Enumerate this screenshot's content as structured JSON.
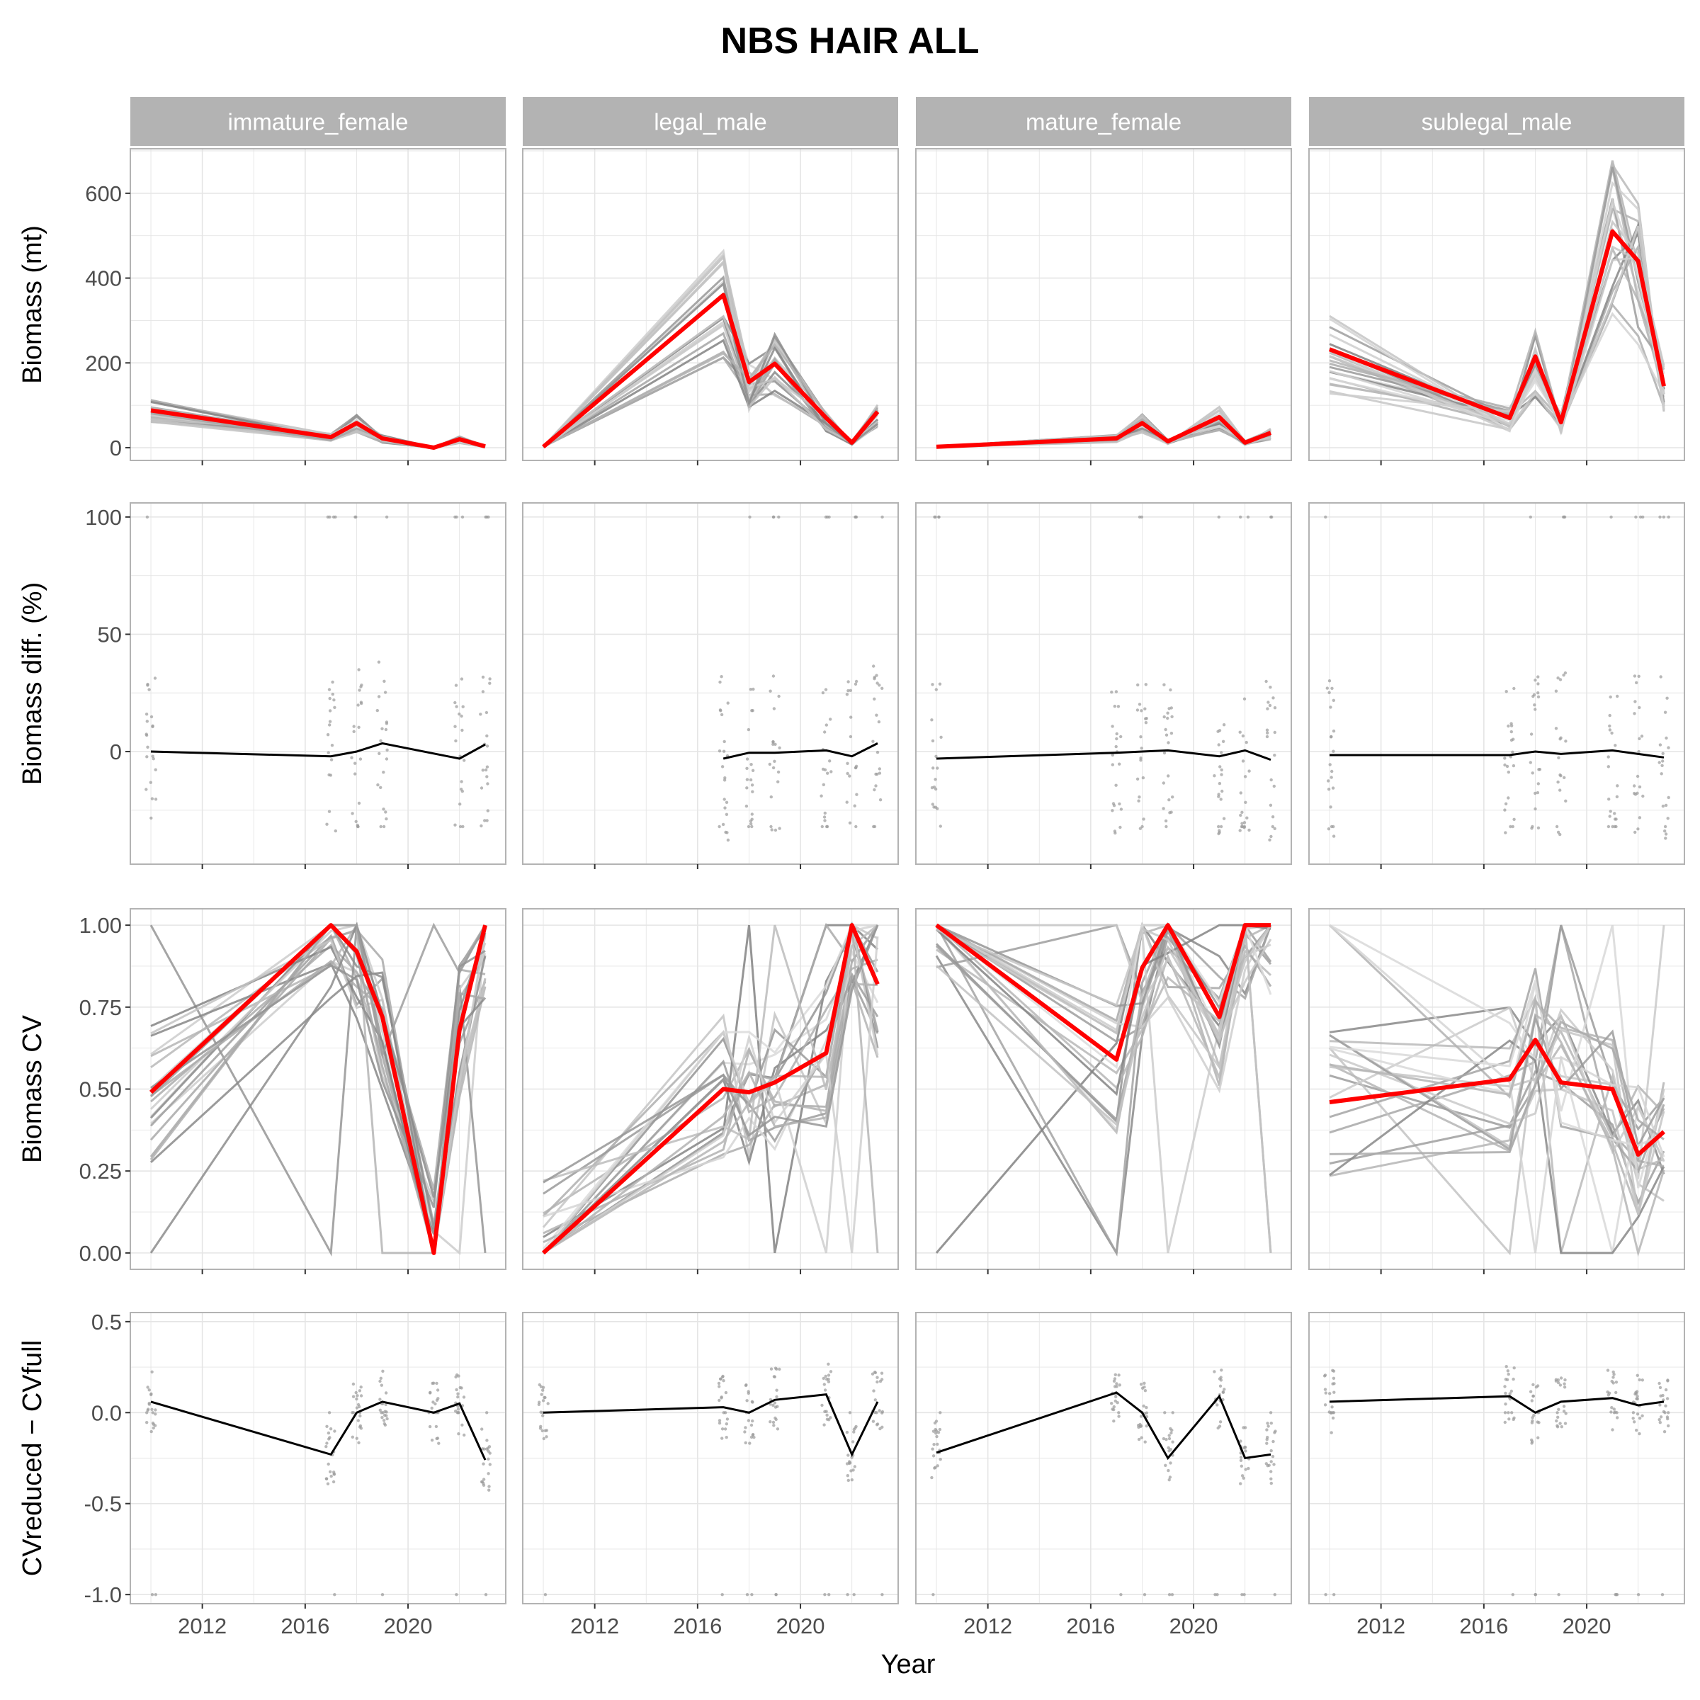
{
  "title": "NBS HAIR ALL",
  "xlabel": "Year",
  "panel_names": [
    "immature_female",
    "legal_male",
    "mature_female",
    "sublegal_male"
  ],
  "row_labels": {
    "biomass": "Biomass (mt)",
    "diff": "Biomass diff. (%)",
    "cv": "Biomass CV",
    "dcv": "CVreduced − CVfull"
  },
  "colors": {
    "highlight": "#ff0000",
    "replicate": "#808080",
    "mean_line": "#000000",
    "points": "#9a9a9a",
    "strip": "#b3b3b3",
    "panel_border": "#b3b3b3",
    "grid": "#e5e5e5"
  },
  "chart_data": {
    "type": "line",
    "layout": "facet grid, 4 rows x 4 columns, shared x axis",
    "x_ticks": [
      2012,
      2016,
      2020
    ],
    "rows": [
      {
        "key": "biomass",
        "ylabel": "Biomass (mt)",
        "ylim": [
          -30,
          705
        ],
        "y_ticks": [
          0,
          200,
          400,
          600
        ],
        "y_tick_labels": [
          "0",
          "200",
          "400",
          "600"
        ],
        "panels": [
          {
            "name": "immature_female",
            "x": [
              2010,
              2017,
              2018,
              2019,
              2021,
              2022,
              2023
            ],
            "values": [
              88,
              25,
              58,
              22,
              0,
              20,
              3
            ]
          },
          {
            "name": "legal_male",
            "x": [
              2010,
              2017,
              2018,
              2019,
              2021,
              2022,
              2023
            ],
            "values": [
              2,
              360,
              155,
              198,
              70,
              12,
              85
            ]
          },
          {
            "name": "mature_female",
            "x": [
              2010,
              2017,
              2018,
              2019,
              2021,
              2022,
              2023
            ],
            "values": [
              2,
              22,
              58,
              15,
              72,
              12,
              35
            ]
          },
          {
            "name": "sublegal_male",
            "x": [
              2010,
              2017,
              2018,
              2019,
              2021,
              2022,
              2023
            ],
            "values": [
              232,
              70,
              215,
              60,
              510,
              440,
              145
            ]
          }
        ]
      },
      {
        "key": "diff",
        "ylabel": "Biomass diff. (%)",
        "ylim": [
          -48,
          106
        ],
        "y_ticks": [
          0,
          50,
          100
        ],
        "y_tick_labels": [
          "0",
          "50",
          "100"
        ],
        "panels": [
          {
            "name": "immature_female",
            "x": [
              2010,
              2017,
              2018,
              2019,
              2022,
              2023
            ],
            "values": [
              0,
              -2,
              0,
              3.5,
              -3,
              3
            ]
          },
          {
            "name": "legal_male",
            "x": [
              2017,
              2018,
              2019,
              2021,
              2022,
              2023
            ],
            "values": [
              -3,
              -0.5,
              -0.5,
              0.5,
              -2,
              3.5
            ]
          },
          {
            "name": "mature_female",
            "x": [
              2010,
              2017,
              2018,
              2019,
              2021,
              2022,
              2023
            ],
            "values": [
              -3,
              -0.5,
              0,
              0.5,
              -2,
              0.5,
              -3.5
            ]
          },
          {
            "name": "sublegal_male",
            "x": [
              2010,
              2017,
              2018,
              2019,
              2021,
              2022,
              2023
            ],
            "values": [
              -1.5,
              -1.5,
              0,
              -1,
              0.5,
              -1,
              -2.5
            ]
          }
        ]
      },
      {
        "key": "cv",
        "ylabel": "Biomass CV",
        "ylim": [
          -0.05,
          1.05
        ],
        "y_ticks": [
          0,
          0.25,
          0.5,
          0.75,
          1
        ],
        "y_tick_labels": [
          "0.00",
          "0.25",
          "0.50",
          "0.75",
          "1.00"
        ],
        "panels": [
          {
            "name": "immature_female",
            "x": [
              2010,
              2017,
              2018,
              2019,
              2021,
              2022,
              2023
            ],
            "values": [
              0.49,
              1.0,
              0.92,
              0.72,
              0.0,
              0.68,
              1.0
            ]
          },
          {
            "name": "legal_male",
            "x": [
              2010,
              2017,
              2018,
              2019,
              2021,
              2022,
              2023
            ],
            "values": [
              0.0,
              0.5,
              0.49,
              0.52,
              0.61,
              1.0,
              0.82
            ]
          },
          {
            "name": "mature_female",
            "x": [
              2010,
              2017,
              2018,
              2019,
              2021,
              2022,
              2023
            ],
            "values": [
              1.0,
              0.59,
              0.87,
              1.0,
              0.72,
              1.0,
              1.0
            ]
          },
          {
            "name": "sublegal_male",
            "x": [
              2010,
              2017,
              2018,
              2019,
              2021,
              2022,
              2023
            ],
            "values": [
              0.46,
              0.53,
              0.65,
              0.52,
              0.5,
              0.3,
              0.37
            ]
          }
        ]
      },
      {
        "key": "dcv",
        "ylabel": "CVreduced − CVfull",
        "ylim": [
          -1.05,
          0.55
        ],
        "y_ticks": [
          -1,
          -0.5,
          0,
          0.5
        ],
        "y_tick_labels": [
          "-1.0",
          "-0.5",
          "0.0",
          "0.5"
        ],
        "panels": [
          {
            "name": "immature_female",
            "x": [
              2010,
              2017,
              2018,
              2019,
              2021,
              2022,
              2023
            ],
            "values": [
              0.06,
              -0.23,
              0,
              0.06,
              0,
              0.05,
              -0.26
            ]
          },
          {
            "name": "legal_male",
            "x": [
              2010,
              2017,
              2018,
              2019,
              2021,
              2022,
              2023
            ],
            "values": [
              0,
              0.03,
              0,
              0.07,
              0.1,
              -0.23,
              0.06
            ]
          },
          {
            "name": "mature_female",
            "x": [
              2010,
              2017,
              2018,
              2019,
              2021,
              2022,
              2023
            ],
            "values": [
              -0.22,
              0.11,
              0,
              -0.25,
              0.09,
              -0.25,
              -0.23
            ]
          },
          {
            "name": "sublegal_male",
            "x": [
              2010,
              2017,
              2018,
              2019,
              2021,
              2022,
              2023
            ],
            "values": [
              0.06,
              0.09,
              0,
              0.06,
              0.08,
              0.04,
              0.06
            ]
          }
        ]
      }
    ]
  }
}
